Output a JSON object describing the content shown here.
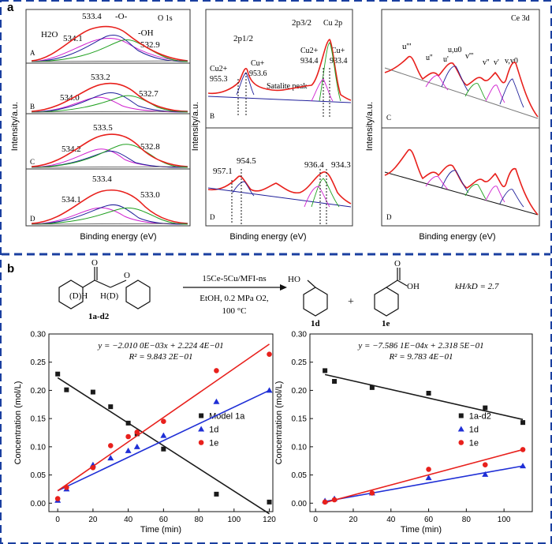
{
  "panel_a": {
    "label": "a",
    "ylabel": "Intensity/a.u.",
    "xlabel": "Binding energy (eV)",
    "o1s": {
      "title": "O 1s",
      "sub_a": {
        "tag": "A",
        "peaks": [
          {
            "text": "533.4"
          },
          {
            "text": "-O-"
          },
          {
            "text": "H2O"
          },
          {
            "text": "534.1"
          },
          {
            "text": "-OH"
          },
          {
            "text": "532.9"
          }
        ]
      },
      "sub_b": {
        "tag": "B",
        "peaks": [
          {
            "text": "533.2"
          },
          {
            "text": "534.0"
          },
          {
            "text": "532.7"
          }
        ]
      },
      "sub_c": {
        "tag": "C",
        "peaks": [
          {
            "text": "533.5"
          },
          {
            "text": "534.2"
          },
          {
            "text": "532.8"
          }
        ]
      },
      "sub_d": {
        "tag": "D",
        "peaks": [
          {
            "text": "533.4"
          },
          {
            "text": "534.1"
          },
          {
            "text": "533.0"
          }
        ]
      }
    },
    "cu2p": {
      "title": "Cu 2p",
      "sub_b": {
        "tag": "B",
        "labels": [
          "2p1/2",
          "2p3/2",
          "Cu2+",
          "955.3",
          "Cu+",
          "953.6",
          "Cu2+",
          "934.4",
          "Cu+",
          "933.4",
          "Satalite peak"
        ]
      },
      "sub_d": {
        "tag": "D",
        "labels": [
          "957.1",
          "954.5",
          "936.4",
          "934.3"
        ]
      }
    },
    "ce3d": {
      "title": "Ce 3d",
      "sub_c": {
        "tag": "C",
        "labels": [
          "u'''",
          "u''",
          "u'",
          "u,u0",
          "v'''",
          "v''",
          "v'",
          "v,v0"
        ]
      },
      "sub_d": {
        "tag": "D"
      }
    }
  },
  "panel_b": {
    "label": "b",
    "scheme": {
      "reactant": "1a-d2",
      "reactant_labels": [
        "(D)H",
        "H(D)"
      ],
      "conditions_top": "15Ce-5Cu/MFI-ns",
      "conditions_mid": "EtOH, 0.2 MPa O2,",
      "conditions_bot": "100 °C",
      "product1": "1d",
      "product2": "1e",
      "plus": "+",
      "ho": "HO",
      "oh": "OH",
      "o": "O",
      "kie": "kH/kD = 2.7"
    }
  },
  "colors": {
    "black": "#1a1a1a",
    "blue": "#1f2fd6",
    "red": "#e8201c",
    "green": "#1fa01f",
    "magenta": "#d020d0",
    "navy": "#1f1f9a",
    "divider": "#1a3fa0"
  },
  "chart_data": [
    {
      "type": "scatter",
      "title": "",
      "xlabel": "Time (min)",
      "ylabel": "Concentration (mol/L)",
      "xlim": [
        -5,
        122
      ],
      "ylim": [
        -0.015,
        0.3
      ],
      "xticks": [
        0,
        20,
        40,
        60,
        80,
        100,
        120
      ],
      "yticks": [
        0.0,
        0.05,
        0.1,
        0.15,
        0.2,
        0.25,
        0.3
      ],
      "equation": "y = −2.010 0E−03x + 2.224 4E−01",
      "r2": "R² = 9.843 2E−01",
      "legend_position": "center-right",
      "series": [
        {
          "name": "Model 1a",
          "marker": "square",
          "color": "#1a1a1a",
          "x": [
            0,
            5,
            20,
            30,
            40,
            45,
            60,
            90,
            120
          ],
          "y": [
            0.229,
            0.201,
            0.197,
            0.171,
            0.142,
            0.123,
            0.096,
            0.016,
            0.002
          ],
          "fit": [
            [
              0,
              0.2224
            ],
            [
              120,
              -0.0188
            ]
          ]
        },
        {
          "name": "1d",
          "marker": "triangle",
          "color": "#1f2fd6",
          "x": [
            0,
            5,
            20,
            30,
            40,
            45,
            60,
            90,
            120
          ],
          "y": [
            0.005,
            0.025,
            0.068,
            0.08,
            0.093,
            0.1,
            0.12,
            0.18,
            0.2
          ],
          "fit": [
            [
              0,
              0.022
            ],
            [
              120,
              0.2
            ]
          ]
        },
        {
          "name": "1e",
          "marker": "circle",
          "color": "#e8201c",
          "x": [
            0,
            5,
            20,
            30,
            40,
            45,
            60,
            90,
            120
          ],
          "y": [
            0.008,
            0.028,
            0.063,
            0.102,
            0.118,
            0.126,
            0.145,
            0.235,
            0.264
          ],
          "fit": [
            [
              0,
              0.022
            ],
            [
              120,
              0.282
            ]
          ]
        }
      ]
    },
    {
      "type": "scatter",
      "title": "",
      "xlabel": "Time (min)",
      "ylabel": "Concentration (mol/L)",
      "xlim": [
        -3,
        115
      ],
      "ylim": [
        -0.015,
        0.3
      ],
      "xticks": [
        0,
        20,
        40,
        60,
        80,
        100
      ],
      "yticks": [
        0.0,
        0.05,
        0.1,
        0.15,
        0.2,
        0.25,
        0.3
      ],
      "equation": "y = −7.586 1E−04x + 2.318 5E−01",
      "r2": "R² = 9.783 4E−01",
      "legend_position": "center-right",
      "series": [
        {
          "name": "1a-d2",
          "marker": "square",
          "color": "#1a1a1a",
          "x": [
            5,
            10,
            30,
            60,
            90,
            110
          ],
          "y": [
            0.235,
            0.216,
            0.205,
            0.195,
            0.169,
            0.143
          ],
          "fit": [
            [
              5,
              0.2281
            ],
            [
              110,
              0.1484
            ]
          ]
        },
        {
          "name": "1d",
          "marker": "triangle",
          "color": "#1f2fd6",
          "x": [
            5,
            10,
            30,
            60,
            90,
            110
          ],
          "y": [
            0.004,
            0.008,
            0.018,
            0.045,
            0.051,
            0.066
          ],
          "fit": [
            [
              5,
              0.003
            ],
            [
              110,
              0.066
            ]
          ]
        },
        {
          "name": "1e",
          "marker": "circle",
          "color": "#e8201c",
          "x": [
            5,
            10,
            30,
            60,
            90,
            110
          ],
          "y": [
            0.002,
            0.006,
            0.018,
            0.06,
            0.068,
            0.095
          ],
          "fit": [
            [
              5,
              0.001
            ],
            [
              110,
              0.095
            ]
          ]
        }
      ]
    }
  ]
}
